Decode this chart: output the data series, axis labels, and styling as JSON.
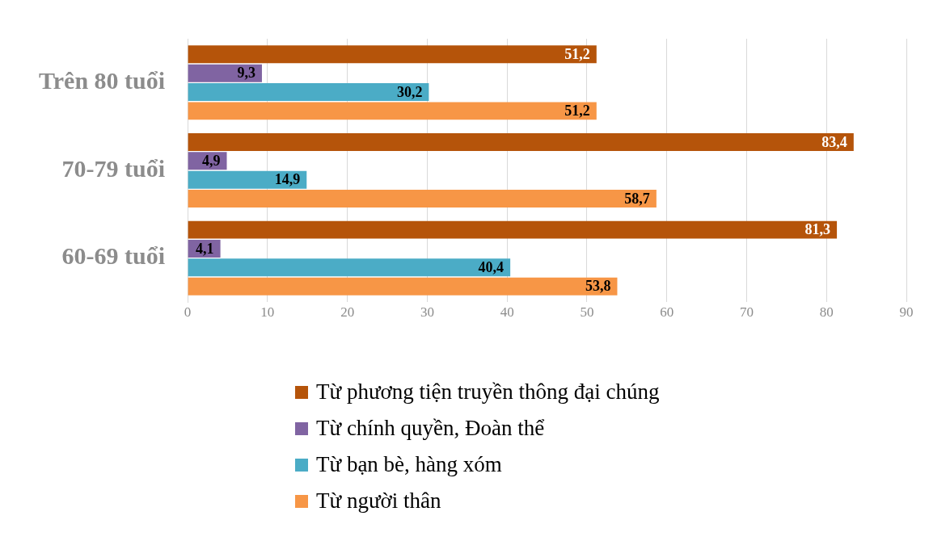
{
  "chart_data": {
    "type": "bar",
    "orientation": "horizontal",
    "categories": [
      "Trên 80 tuổi",
      "70-79 tuổi",
      "60-69 tuổi"
    ],
    "series": [
      {
        "name": "Từ phương tiện truyền thông đại chúng",
        "color": "#b5540a",
        "values": [
          51.2,
          83.4,
          81.3
        ],
        "value_labels": [
          "51,2",
          "83,4",
          "81,3"
        ]
      },
      {
        "name": "Từ chính quyền, Đoàn thể",
        "color": "#8064a2",
        "values": [
          9.3,
          4.9,
          4.1
        ],
        "value_labels": [
          "9,3",
          "4,9",
          "4,1"
        ]
      },
      {
        "name": "Từ bạn bè, hàng xóm",
        "color": "#4bacc6",
        "values": [
          30.2,
          14.9,
          40.4
        ],
        "value_labels": [
          "30,2",
          "14,9",
          "40,4"
        ]
      },
      {
        "name": "Từ người thân",
        "color": "#f79646",
        "values": [
          51.2,
          58.7,
          53.8
        ],
        "value_labels": [
          "51,2",
          "58,7",
          "53,8"
        ]
      }
    ],
    "xlim": [
      0,
      90
    ],
    "xticks": [
      0,
      10,
      20,
      30,
      40,
      50,
      60,
      70,
      80,
      90
    ],
    "grid": "x",
    "legend": "bottom"
  }
}
